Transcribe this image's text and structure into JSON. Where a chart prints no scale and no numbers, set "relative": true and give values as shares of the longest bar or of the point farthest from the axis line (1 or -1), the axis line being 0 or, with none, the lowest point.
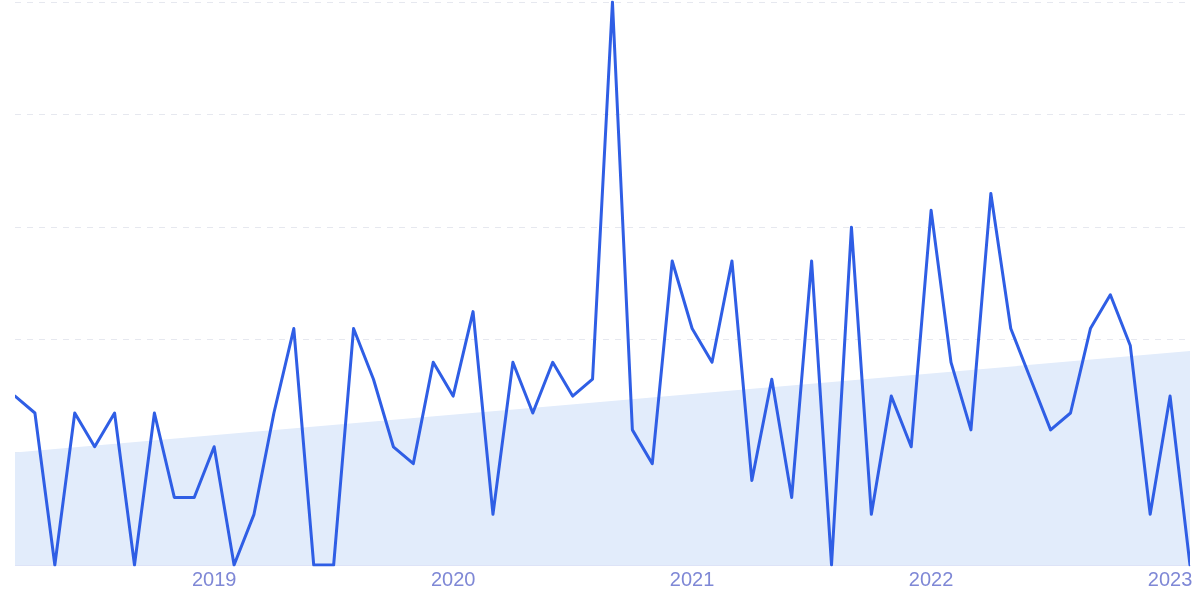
{
  "chart_data": {
    "type": "line",
    "relative": true,
    "grid": "y",
    "tick_labels": "x",
    "marker": "none",
    "line_style": "solid",
    "legend": false,
    "xlim": [
      "2018-03",
      "2023-02"
    ],
    "xticks": [
      "2019",
      "2020",
      "2021",
      "2022",
      "2023"
    ],
    "x": [
      "2018-03",
      "2018-04",
      "2018-05",
      "2018-06",
      "2018-07",
      "2018-08",
      "2018-09",
      "2018-10",
      "2018-11",
      "2018-12",
      "2019-01",
      "2019-02",
      "2019-03",
      "2019-04",
      "2019-05",
      "2019-06",
      "2019-07",
      "2019-08",
      "2019-09",
      "2019-10",
      "2019-11",
      "2019-12",
      "2020-01",
      "2020-02",
      "2020-03",
      "2020-04",
      "2020-05",
      "2020-06",
      "2020-07",
      "2020-08",
      "2020-09",
      "2020-10",
      "2020-11",
      "2020-12",
      "2021-01",
      "2021-02",
      "2021-03",
      "2021-04",
      "2021-05",
      "2021-06",
      "2021-07",
      "2021-08",
      "2021-09",
      "2021-10",
      "2021-11",
      "2021-12",
      "2022-01",
      "2022-02",
      "2022-03",
      "2022-04",
      "2022-05",
      "2022-06",
      "2022-07",
      "2022-08",
      "2022-09",
      "2022-10",
      "2022-11",
      "2022-12",
      "2023-01",
      "2023-02"
    ],
    "series": [
      {
        "type": "line",
        "color": "#2f5ee5",
        "values": [
          0.3,
          0.27,
          0,
          0.27,
          0.21,
          0.27,
          0,
          0.27,
          0.12,
          0.12,
          0.21,
          0,
          0.09,
          0.27,
          0.42,
          0,
          0,
          0.42,
          0.33,
          0.21,
          0.18,
          0.36,
          0.3,
          0.45,
          0.09,
          0.36,
          0.27,
          0.36,
          0.3,
          0.33,
          1,
          0.24,
          0.18,
          0.54,
          0.42,
          0.36,
          0.54,
          0.15,
          0.33,
          0.12,
          0.54,
          0,
          0.6,
          0.09,
          0.3,
          0.21,
          0.63,
          0.36,
          0.24,
          0.66,
          0.42,
          0.33,
          0.24,
          0.27,
          0.42,
          0.48,
          0.39,
          0.09,
          0.3,
          0
        ]
      },
      {
        "type": "area",
        "color": "#e2ecfb",
        "x": [
          "2018-03",
          "2023-02"
        ],
        "values": [
          0.2,
          0.38
        ]
      }
    ]
  }
}
